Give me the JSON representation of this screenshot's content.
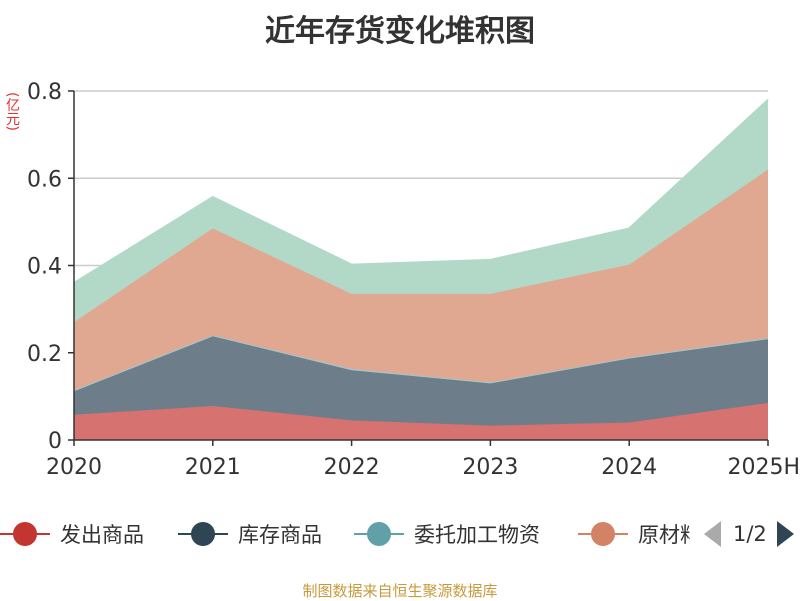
{
  "title": "近年存货变化堆积图",
  "unit": "(亿元)",
  "source": "制图数据来自恒生聚源数据库",
  "pager": "1/2",
  "legend": [
    {
      "name": "发出商品",
      "color": "#c23531"
    },
    {
      "name": "库存商品",
      "color": "#2f4554"
    },
    {
      "name": "委托加工物资",
      "color": "#61a0a8"
    },
    {
      "name": "原材料",
      "color": "#d48265"
    }
  ],
  "chart_data": {
    "type": "area",
    "stacked": true,
    "x": [
      "2020",
      "2021",
      "2022",
      "2023",
      "2024",
      "2025H"
    ],
    "ylim": [
      0,
      0.8
    ],
    "yticks": [
      "0",
      "0.2",
      "0.4",
      "0.6",
      "0.8"
    ],
    "grid": true,
    "series": [
      {
        "name": "发出商品",
        "color": "#d6726f",
        "values": [
          0.058,
          0.078,
          0.045,
          0.033,
          0.04,
          0.085
        ]
      },
      {
        "name": "库存商品",
        "color": "#6d7d89",
        "values": [
          0.055,
          0.16,
          0.115,
          0.097,
          0.147,
          0.146
        ]
      },
      {
        "name": "委托加工物资",
        "color": "#a0c6cb",
        "values": [
          0.001,
          0.002,
          0.003,
          0.002,
          0.002,
          0.003
        ]
      },
      {
        "name": "原材料",
        "color": "#e1a891",
        "values": [
          0.156,
          0.245,
          0.172,
          0.203,
          0.213,
          0.386
        ]
      },
      {
        "name": "",
        "color": "#b2d8c8",
        "values": [
          0.09,
          0.072,
          0.067,
          0.078,
          0.083,
          0.16
        ]
      }
    ]
  }
}
